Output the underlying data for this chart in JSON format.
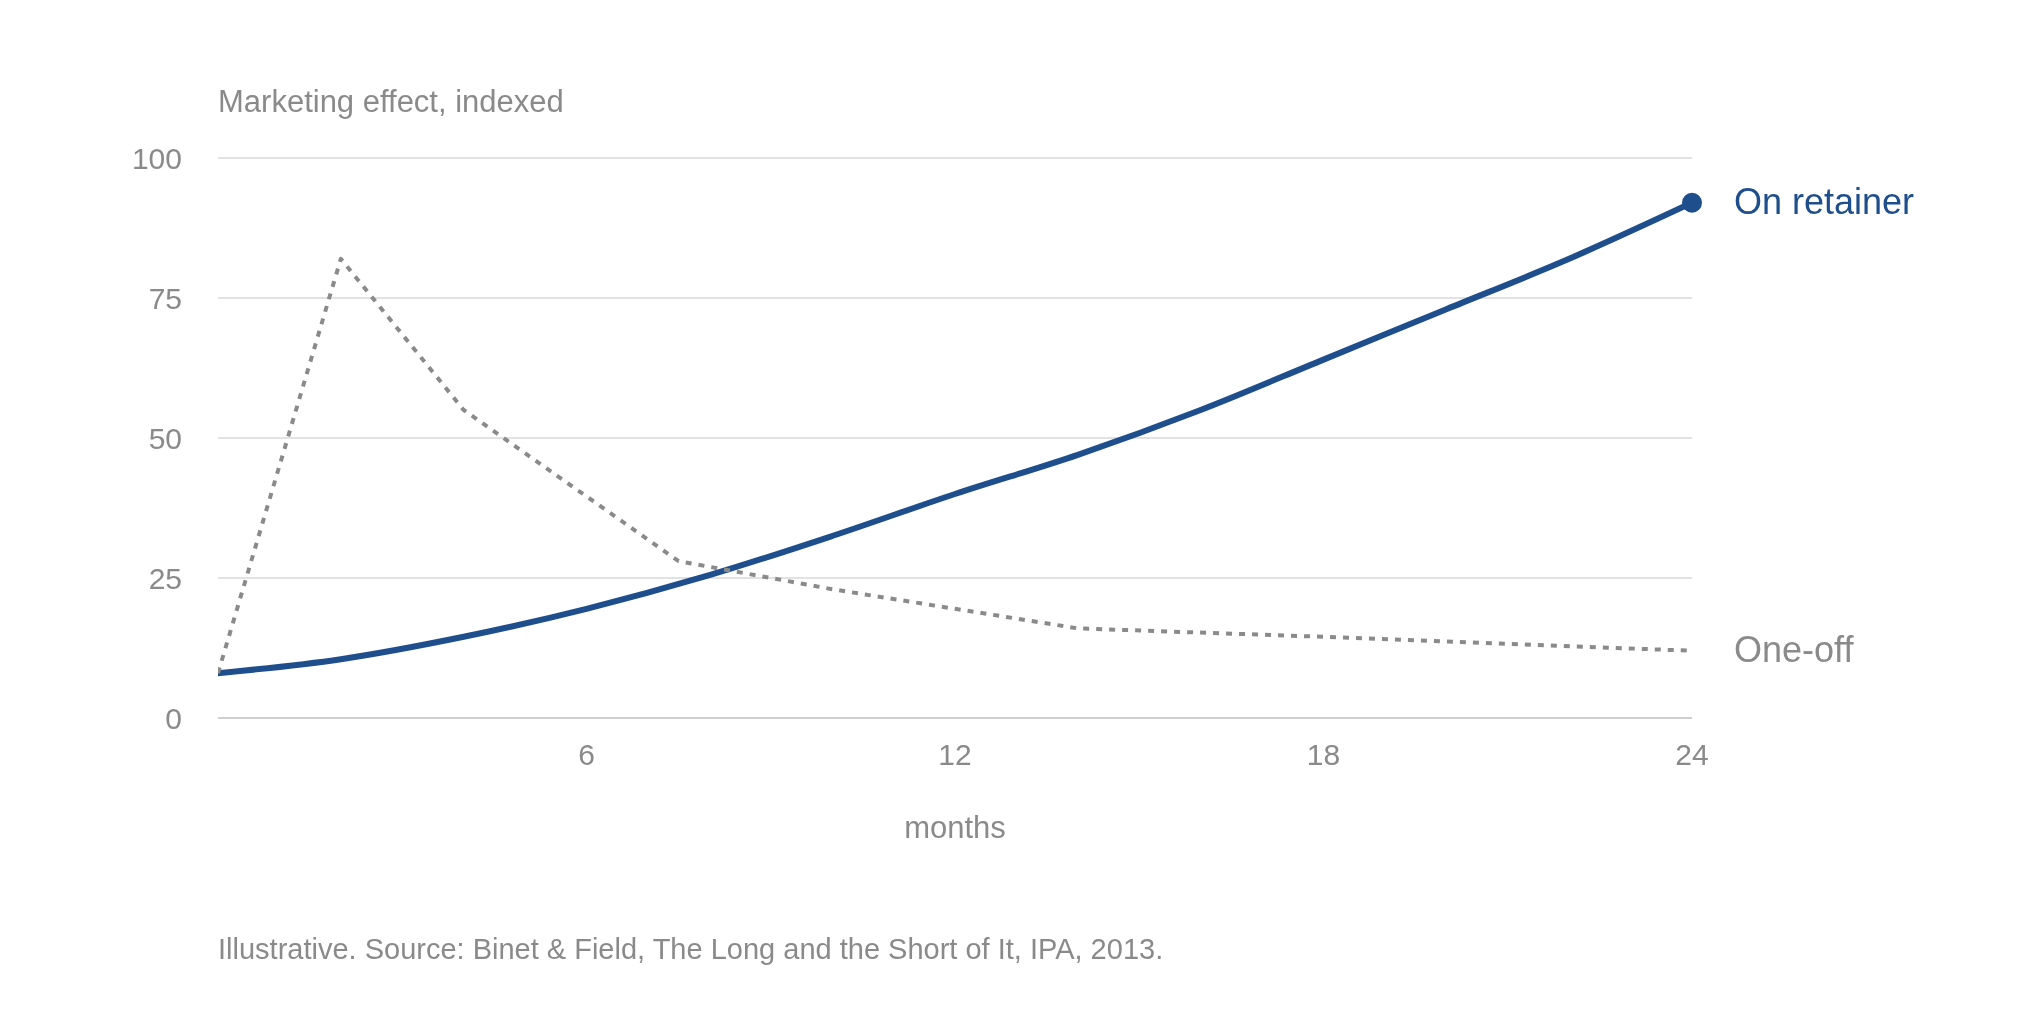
{
  "chart_data": {
    "type": "line",
    "ylabel": "Marketing effect, indexed",
    "xlabel": "months",
    "annotations": [
      "Illustrative. Source: Binet & Field, The Long and the Short of It, IPA, 2013."
    ],
    "xlim": [
      0,
      24
    ],
    "xticks": [
      6,
      12,
      18,
      24
    ],
    "ylim": [
      0,
      100
    ],
    "yticks": [
      0,
      25,
      50,
      75,
      100
    ],
    "grid": "y",
    "series": [
      {
        "name": "On retainer",
        "color": "#1f4e8c",
        "line_style": "solid",
        "x": [
          0,
          2,
          4,
          6,
          8,
          10,
          12,
          14,
          16,
          18,
          20,
          22,
          24
        ],
        "values": [
          8,
          10.5,
          14.5,
          19.5,
          25.5,
          32.5,
          40,
          47,
          55,
          64,
          73,
          82,
          92
        ]
      },
      {
        "name": "One-off",
        "color": "#8a8a8a",
        "line_style": "dotted",
        "x": [
          0,
          2,
          4,
          7.5,
          10,
          12,
          14,
          18,
          24
        ],
        "values": [
          8,
          82,
          55,
          28,
          23,
          19.5,
          16,
          14.5,
          12
        ]
      }
    ]
  }
}
